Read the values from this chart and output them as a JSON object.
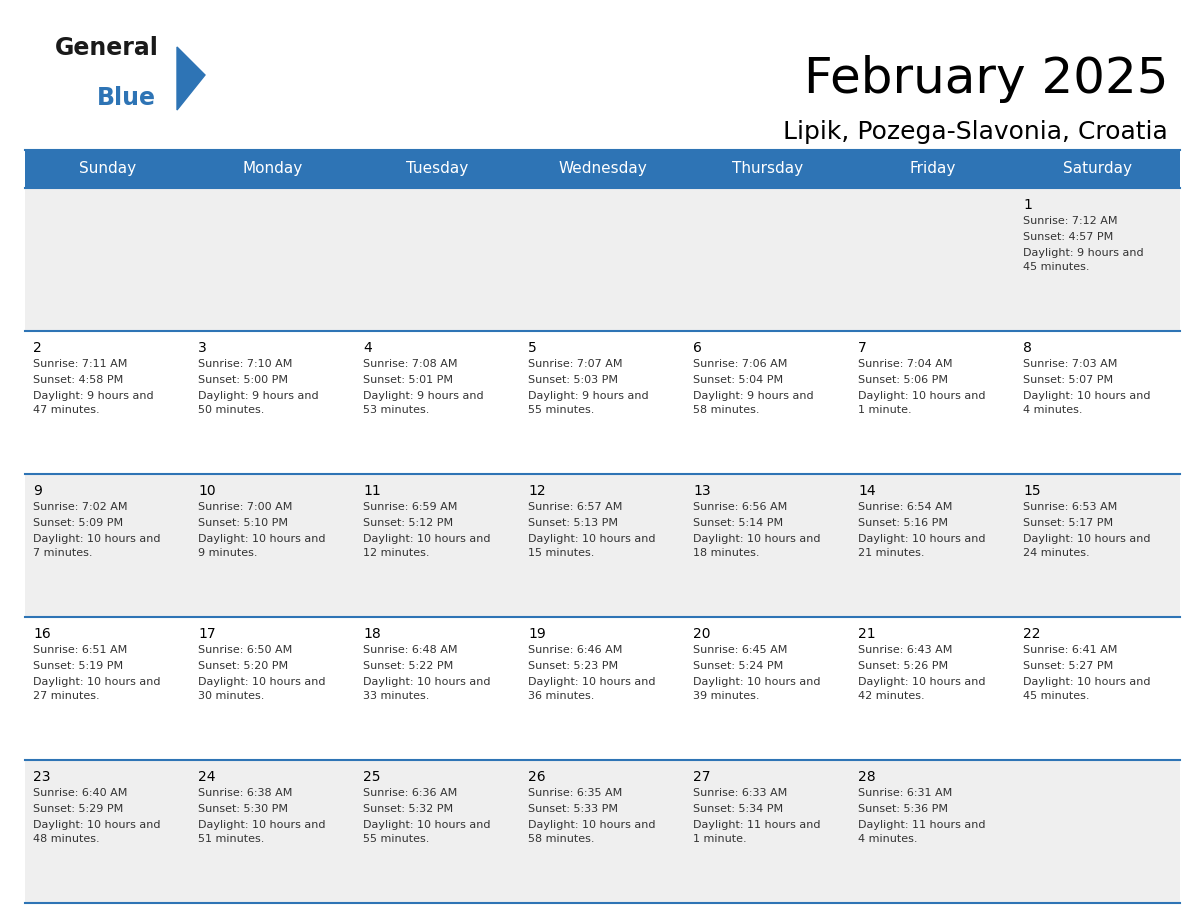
{
  "title": "February 2025",
  "subtitle": "Lipik, Pozega-Slavonia, Croatia",
  "header_bg": "#2E74B5",
  "header_text": "#FFFFFF",
  "cell_bg_gray": "#EFEFEF",
  "cell_bg_white": "#FFFFFF",
  "cell_border": "#2E74B5",
  "text_color": "#333333",
  "day_headers": [
    "Sunday",
    "Monday",
    "Tuesday",
    "Wednesday",
    "Thursday",
    "Friday",
    "Saturday"
  ],
  "days": [
    {
      "day": 1,
      "col": 6,
      "row": 0,
      "sunrise": "7:12 AM",
      "sunset": "4:57 PM",
      "daylight": "9 hours and 45 minutes."
    },
    {
      "day": 2,
      "col": 0,
      "row": 1,
      "sunrise": "7:11 AM",
      "sunset": "4:58 PM",
      "daylight": "9 hours and 47 minutes."
    },
    {
      "day": 3,
      "col": 1,
      "row": 1,
      "sunrise": "7:10 AM",
      "sunset": "5:00 PM",
      "daylight": "9 hours and 50 minutes."
    },
    {
      "day": 4,
      "col": 2,
      "row": 1,
      "sunrise": "7:08 AM",
      "sunset": "5:01 PM",
      "daylight": "9 hours and 53 minutes."
    },
    {
      "day": 5,
      "col": 3,
      "row": 1,
      "sunrise": "7:07 AM",
      "sunset": "5:03 PM",
      "daylight": "9 hours and 55 minutes."
    },
    {
      "day": 6,
      "col": 4,
      "row": 1,
      "sunrise": "7:06 AM",
      "sunset": "5:04 PM",
      "daylight": "9 hours and 58 minutes."
    },
    {
      "day": 7,
      "col": 5,
      "row": 1,
      "sunrise": "7:04 AM",
      "sunset": "5:06 PM",
      "daylight": "10 hours and 1 minute."
    },
    {
      "day": 8,
      "col": 6,
      "row": 1,
      "sunrise": "7:03 AM",
      "sunset": "5:07 PM",
      "daylight": "10 hours and 4 minutes."
    },
    {
      "day": 9,
      "col": 0,
      "row": 2,
      "sunrise": "7:02 AM",
      "sunset": "5:09 PM",
      "daylight": "10 hours and 7 minutes."
    },
    {
      "day": 10,
      "col": 1,
      "row": 2,
      "sunrise": "7:00 AM",
      "sunset": "5:10 PM",
      "daylight": "10 hours and 9 minutes."
    },
    {
      "day": 11,
      "col": 2,
      "row": 2,
      "sunrise": "6:59 AM",
      "sunset": "5:12 PM",
      "daylight": "10 hours and 12 minutes."
    },
    {
      "day": 12,
      "col": 3,
      "row": 2,
      "sunrise": "6:57 AM",
      "sunset": "5:13 PM",
      "daylight": "10 hours and 15 minutes."
    },
    {
      "day": 13,
      "col": 4,
      "row": 2,
      "sunrise": "6:56 AM",
      "sunset": "5:14 PM",
      "daylight": "10 hours and 18 minutes."
    },
    {
      "day": 14,
      "col": 5,
      "row": 2,
      "sunrise": "6:54 AM",
      "sunset": "5:16 PM",
      "daylight": "10 hours and 21 minutes."
    },
    {
      "day": 15,
      "col": 6,
      "row": 2,
      "sunrise": "6:53 AM",
      "sunset": "5:17 PM",
      "daylight": "10 hours and 24 minutes."
    },
    {
      "day": 16,
      "col": 0,
      "row": 3,
      "sunrise": "6:51 AM",
      "sunset": "5:19 PM",
      "daylight": "10 hours and 27 minutes."
    },
    {
      "day": 17,
      "col": 1,
      "row": 3,
      "sunrise": "6:50 AM",
      "sunset": "5:20 PM",
      "daylight": "10 hours and 30 minutes."
    },
    {
      "day": 18,
      "col": 2,
      "row": 3,
      "sunrise": "6:48 AM",
      "sunset": "5:22 PM",
      "daylight": "10 hours and 33 minutes."
    },
    {
      "day": 19,
      "col": 3,
      "row": 3,
      "sunrise": "6:46 AM",
      "sunset": "5:23 PM",
      "daylight": "10 hours and 36 minutes."
    },
    {
      "day": 20,
      "col": 4,
      "row": 3,
      "sunrise": "6:45 AM",
      "sunset": "5:24 PM",
      "daylight": "10 hours and 39 minutes."
    },
    {
      "day": 21,
      "col": 5,
      "row": 3,
      "sunrise": "6:43 AM",
      "sunset": "5:26 PM",
      "daylight": "10 hours and 42 minutes."
    },
    {
      "day": 22,
      "col": 6,
      "row": 3,
      "sunrise": "6:41 AM",
      "sunset": "5:27 PM",
      "daylight": "10 hours and 45 minutes."
    },
    {
      "day": 23,
      "col": 0,
      "row": 4,
      "sunrise": "6:40 AM",
      "sunset": "5:29 PM",
      "daylight": "10 hours and 48 minutes."
    },
    {
      "day": 24,
      "col": 1,
      "row": 4,
      "sunrise": "6:38 AM",
      "sunset": "5:30 PM",
      "daylight": "10 hours and 51 minutes."
    },
    {
      "day": 25,
      "col": 2,
      "row": 4,
      "sunrise": "6:36 AM",
      "sunset": "5:32 PM",
      "daylight": "10 hours and 55 minutes."
    },
    {
      "day": 26,
      "col": 3,
      "row": 4,
      "sunrise": "6:35 AM",
      "sunset": "5:33 PM",
      "daylight": "10 hours and 58 minutes."
    },
    {
      "day": 27,
      "col": 4,
      "row": 4,
      "sunrise": "6:33 AM",
      "sunset": "5:34 PM",
      "daylight": "11 hours and 1 minute."
    },
    {
      "day": 28,
      "col": 5,
      "row": 4,
      "sunrise": "6:31 AM",
      "sunset": "5:36 PM",
      "daylight": "11 hours and 4 minutes."
    }
  ],
  "num_rows": 5,
  "logo_general_color": "#1A1A1A",
  "logo_blue_color": "#2E74B5",
  "logo_triangle_color": "#2E74B5",
  "title_fontsize": 36,
  "subtitle_fontsize": 18,
  "header_fontsize": 11,
  "day_num_fontsize": 10,
  "cell_text_fontsize": 8
}
